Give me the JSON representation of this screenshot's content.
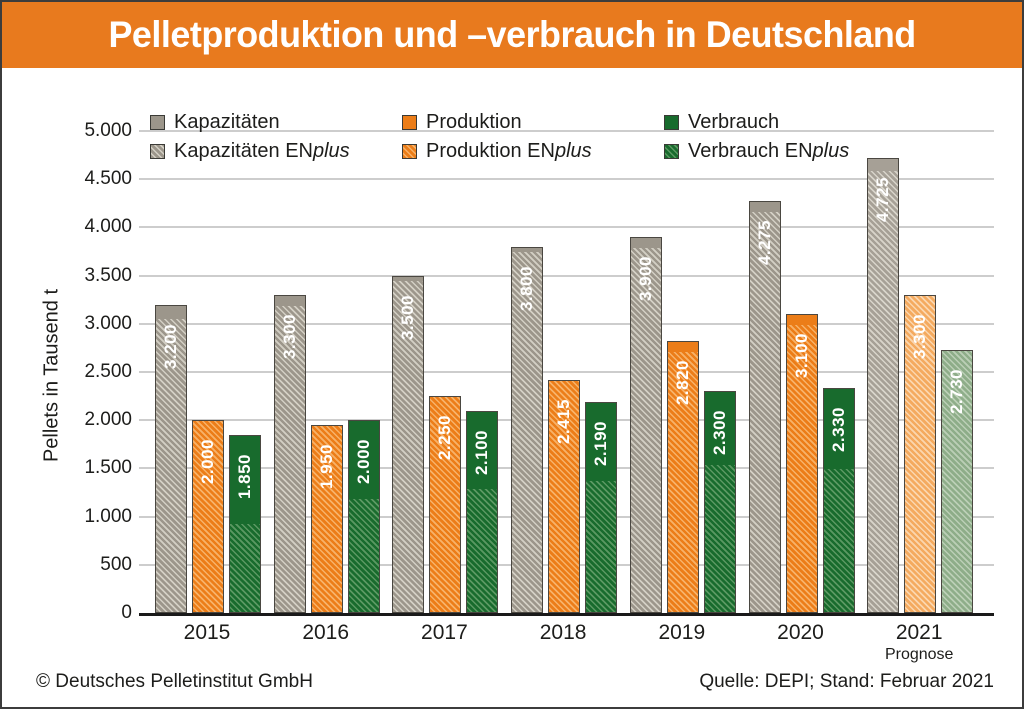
{
  "header": {
    "title": "Pelletproduktion und –verbrauch in Deutschland"
  },
  "footer": {
    "left": "© Deutsches Pelletinstitut GmbH",
    "right": "Quelle: DEPI; Stand: Februar 2021"
  },
  "chart_data": {
    "type": "bar",
    "title": "Pelletproduktion und –verbrauch in Deutschland",
    "ylabel": "Pellets in Tausend t",
    "xlabel": "",
    "ylim": [
      0,
      5000
    ],
    "ytick_step": 500,
    "ytick_labels": [
      "0",
      "500",
      "1.000",
      "1.500",
      "2.000",
      "2.500",
      "3.000",
      "3.500",
      "4.000",
      "4.500",
      "5.000"
    ],
    "grid": true,
    "legend_position": "top-left, two rows",
    "categories": [
      "2015",
      "2016",
      "2017",
      "2018",
      "2019",
      "2020",
      "2021"
    ],
    "category_note": {
      "category": "2021",
      "label": "Prognose"
    },
    "series": [
      {
        "name": "Kapazitäten",
        "values": [
          3200,
          3300,
          3500,
          3800,
          3900,
          4275,
          4725
        ],
        "value_labels": [
          "3.200",
          "3.300",
          "3.500",
          "3.800",
          "3.900",
          "4.275",
          "4.725"
        ]
      },
      {
        "name": "Kapazitäten ENplus",
        "values": [
          3060,
          3190,
          3450,
          3750,
          3800,
          4175,
          4600
        ],
        "note": "hatched lower share of Kapazitäten bars, estimated from pixels"
      },
      {
        "name": "Produktion",
        "values": [
          2000,
          1950,
          2250,
          2415,
          2820,
          3100,
          3300
        ],
        "value_labels": [
          "2.000",
          "1.950",
          "2.250",
          "2.415",
          "2.820",
          "3.100",
          "3.300"
        ]
      },
      {
        "name": "Produktion ENplus",
        "values": [
          2000,
          1950,
          2250,
          2415,
          2720,
          3000,
          3300
        ],
        "note": "hatched lower share of Produktion bars, estimated from pixels"
      },
      {
        "name": "Verbrauch",
        "values": [
          1850,
          2000,
          2100,
          2190,
          2300,
          2330,
          2730
        ],
        "value_labels": [
          "1.850",
          "2.000",
          "2.100",
          "2.190",
          "2.300",
          "2.330",
          "2.730"
        ]
      },
      {
        "name": "Verbrauch ENplus",
        "values": [
          930,
          1190,
          1300,
          1380,
          1550,
          1500,
          2730
        ],
        "note": "hatched lower share of Verbrauch bars, estimated from pixels"
      }
    ],
    "legend_rows": [
      [
        {
          "text": "Kapazitäten",
          "italic": "",
          "swatch": "gray",
          "hatched": false
        },
        {
          "text": "Produktion",
          "italic": "",
          "swatch": "orange",
          "hatched": false
        },
        {
          "text": "Verbrauch",
          "italic": "",
          "swatch": "green",
          "hatched": false
        }
      ],
      [
        {
          "text": "Kapazitäten EN",
          "italic": "plus",
          "swatch": "gray",
          "hatched": true
        },
        {
          "text": "Produktion EN",
          "italic": "plus",
          "swatch": "orange",
          "hatched": true
        },
        {
          "text": "Verbrauch EN",
          "italic": "plus",
          "swatch": "green",
          "hatched": true
        }
      ]
    ]
  },
  "colors": {
    "header_bg": "#E87A1E",
    "frame_border": "#3c3c3c",
    "gridline": "#cdcdcd",
    "axis": "#1a1a1a",
    "text": "#1d1d1b",
    "bar_value_text": "#ffffff",
    "bar_border": "#4a4741",
    "palette": {
      "gray": {
        "base": "#9C968B",
        "stripe": "#D3CFC4"
      },
      "orange": {
        "base": "#EC7D18",
        "stripe": "#F7B269"
      },
      "green": {
        "base": "#186B2D",
        "stripe": "#5B9862"
      },
      "prognose_gray": {
        "base": "#A6A096",
        "stripe": "#D8D4CA"
      },
      "prognose_orange": {
        "base": "#F4AA5F",
        "stripe": "#FBD6AE"
      },
      "prognose_green": {
        "base": "#8EAD89",
        "stripe": "#BBCFB6"
      }
    }
  }
}
